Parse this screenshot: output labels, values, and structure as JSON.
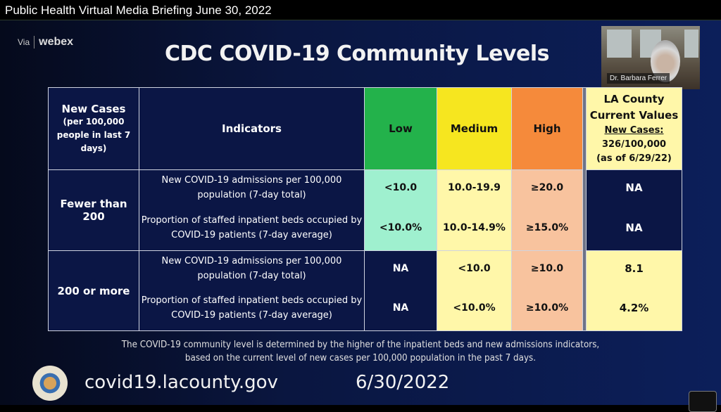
{
  "window": {
    "title": "Public Health Virtual Media Briefing June 30, 2022"
  },
  "webex": {
    "via": "Via",
    "brand": "webex"
  },
  "slide": {
    "title": "CDC COVID-19 Community Levels",
    "video": {
      "name": "Dr. Barbara Ferrer"
    },
    "table": {
      "headers": {
        "new_cases": "New Cases",
        "new_cases_sub": "(per 100,000 people in last 7 days)",
        "indicators": "Indicators",
        "low": "Low",
        "medium": "Medium",
        "high": "High",
        "la_title": "LA County Current Values",
        "la_new_cases": "New Cases:",
        "la_value": "326/100,000",
        "la_asof": "(as of 6/29/22)"
      },
      "groups": [
        {
          "label": "Fewer than 200",
          "rows": [
            {
              "indicator": "New COVID-19 admissions per 100,000 population (7-day total)",
              "low": "<10.0",
              "medium": "10.0-19.9",
              "high": "≥20.0",
              "la": "NA"
            },
            {
              "indicator": "Proportion of staffed inpatient beds occupied by COVID-19 patients (7-day average)",
              "low": "<10.0%",
              "medium": "10.0-14.9%",
              "high": "≥15.0%",
              "la": "NA"
            }
          ]
        },
        {
          "label": "200 or more",
          "rows": [
            {
              "indicator": "New COVID-19 admissions per 100,000 population (7-day total)",
              "low": "NA",
              "medium": "<10.0",
              "high": "≥10.0",
              "la": "8.1"
            },
            {
              "indicator": "Proportion of staffed inpatient beds occupied by COVID-19 patients (7-day average)",
              "low": "NA",
              "medium": "<10.0%",
              "high": "≥10.0%",
              "la": "4.2%"
            }
          ]
        }
      ]
    },
    "footnote_1": "The COVID-19 community level is determined by the higher of the inpatient beds and new admissions indicators,",
    "footnote_2": "based on the current level of new cases per 100,000 population in the past 7 days.",
    "url": "covid19.lacounty.gov",
    "date": "6/30/2022"
  }
}
